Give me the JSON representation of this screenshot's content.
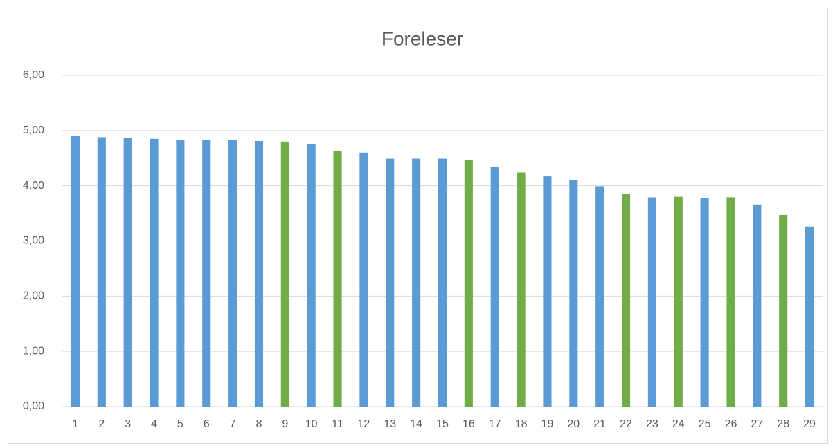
{
  "chart_data": {
    "type": "bar",
    "title": "Foreleser",
    "categories": [
      "1",
      "2",
      "3",
      "4",
      "5",
      "6",
      "7",
      "8",
      "9",
      "10",
      "11",
      "12",
      "13",
      "14",
      "15",
      "16",
      "17",
      "18",
      "19",
      "20",
      "21",
      "22",
      "23",
      "24",
      "25",
      "26",
      "27",
      "28",
      "29"
    ],
    "values": [
      4.9,
      4.88,
      4.86,
      4.85,
      4.83,
      4.83,
      4.83,
      4.81,
      4.8,
      4.75,
      4.63,
      4.6,
      4.49,
      4.49,
      4.49,
      4.47,
      4.34,
      4.24,
      4.17,
      4.1,
      3.99,
      3.85,
      3.79,
      3.8,
      3.78,
      3.79,
      3.66,
      3.47,
      3.26
    ],
    "colors": [
      "#5b9bd5",
      "#5b9bd5",
      "#5b9bd5",
      "#5b9bd5",
      "#5b9bd5",
      "#5b9bd5",
      "#5b9bd5",
      "#5b9bd5",
      "#70ad47",
      "#5b9bd5",
      "#70ad47",
      "#5b9bd5",
      "#5b9bd5",
      "#5b9bd5",
      "#5b9bd5",
      "#70ad47",
      "#5b9bd5",
      "#70ad47",
      "#5b9bd5",
      "#5b9bd5",
      "#5b9bd5",
      "#70ad47",
      "#5b9bd5",
      "#70ad47",
      "#5b9bd5",
      "#70ad47",
      "#5b9bd5",
      "#70ad47",
      "#5b9bd5"
    ],
    "ylim": [
      0,
      6
    ],
    "yticks": [
      {
        "value": 0,
        "label": "0,00"
      },
      {
        "value": 1,
        "label": "1,00"
      },
      {
        "value": 2,
        "label": "2,00"
      },
      {
        "value": 3,
        "label": "3,00"
      },
      {
        "value": 4,
        "label": "4,00"
      },
      {
        "value": 5,
        "label": "5,00"
      },
      {
        "value": 6,
        "label": "6,00"
      }
    ],
    "grid": true
  }
}
